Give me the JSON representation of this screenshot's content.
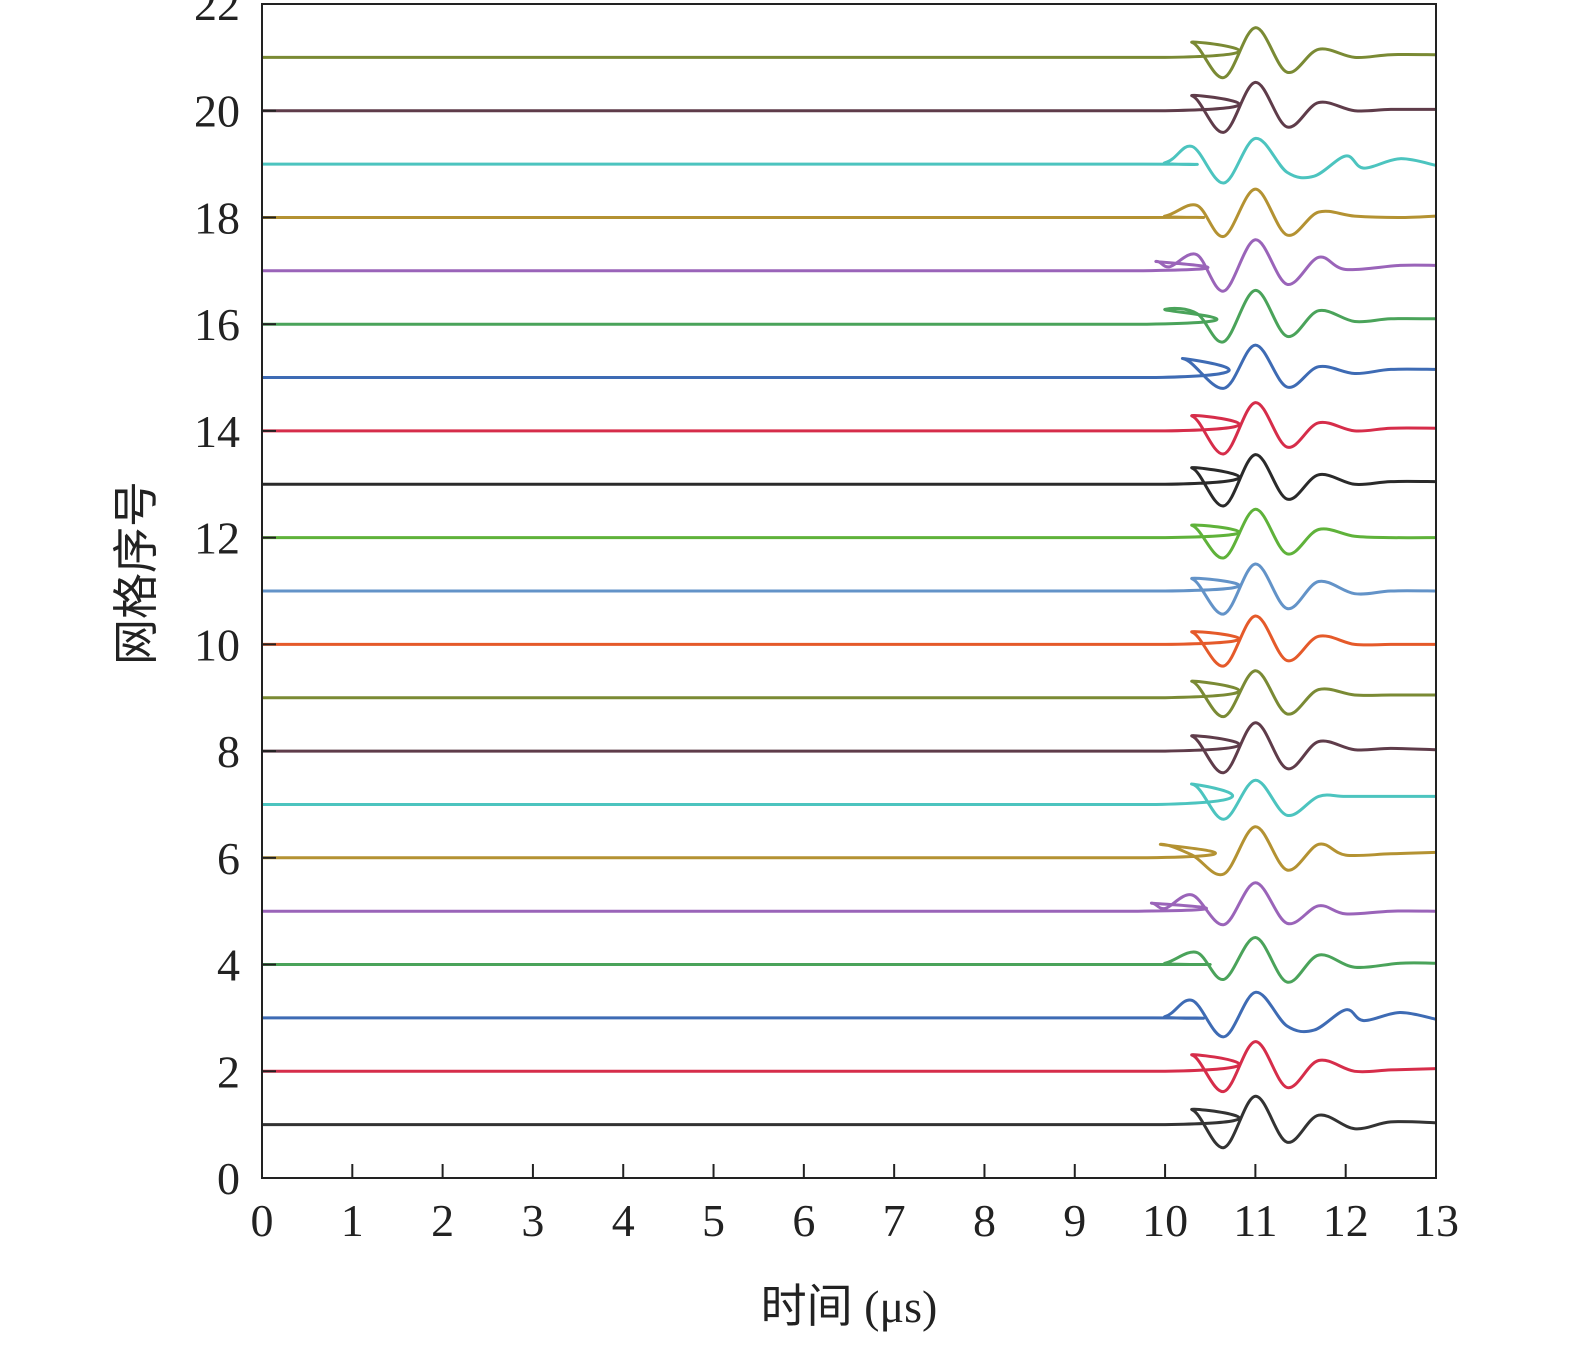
{
  "chart_data": {
    "type": "line",
    "title": "",
    "xlabel": "时间 (μs)",
    "ylabel": "网格序号",
    "xlim": [
      0,
      13
    ],
    "ylim": [
      0,
      22
    ],
    "x_ticks": [
      0,
      1,
      2,
      3,
      4,
      5,
      6,
      7,
      8,
      9,
      10,
      11,
      12,
      13
    ],
    "y_ticks": [
      0,
      2,
      4,
      6,
      8,
      10,
      12,
      14,
      16,
      18,
      20,
      22
    ],
    "grid": false,
    "legend": "none",
    "series": [
      {
        "baseline": 1,
        "color": "#333333",
        "onset": 10.0,
        "points": [
          [
            10.0,
            0
          ],
          [
            10.3,
            0.55
          ],
          [
            10.65,
            -0.85
          ],
          [
            11.0,
            1.05
          ],
          [
            11.35,
            -0.65
          ],
          [
            11.7,
            0.35
          ],
          [
            12.1,
            -0.15
          ],
          [
            12.5,
            0.1
          ],
          [
            13.0,
            0.07
          ]
        ]
      },
      {
        "baseline": 2,
        "color": "#d62d4a",
        "onset": 10.0,
        "points": [
          [
            10.0,
            0
          ],
          [
            10.3,
            0.6
          ],
          [
            10.65,
            -0.75
          ],
          [
            11.0,
            1.1
          ],
          [
            11.35,
            -0.6
          ],
          [
            11.7,
            0.4
          ],
          [
            12.1,
            0.0
          ],
          [
            12.5,
            0.05
          ],
          [
            13.0,
            0.1
          ]
        ]
      },
      {
        "baseline": 3,
        "color": "#3e6bb4",
        "onset": 9.6,
        "points": [
          [
            9.6,
            0
          ],
          [
            10.0,
            0.05
          ],
          [
            10.3,
            0.65
          ],
          [
            10.65,
            -0.7
          ],
          [
            11.0,
            0.95
          ],
          [
            11.35,
            -0.3
          ],
          [
            11.65,
            -0.45
          ],
          [
            12.0,
            0.3
          ],
          [
            12.2,
            -0.1
          ],
          [
            12.6,
            0.2
          ],
          [
            13.0,
            -0.05
          ]
        ]
      },
      {
        "baseline": 4,
        "color": "#4aa35a",
        "onset": 9.7,
        "points": [
          [
            9.7,
            0
          ],
          [
            10.0,
            0.05
          ],
          [
            10.35,
            0.45
          ],
          [
            10.65,
            -0.55
          ],
          [
            11.0,
            1.0
          ],
          [
            11.35,
            -0.65
          ],
          [
            11.7,
            0.35
          ],
          [
            12.1,
            -0.1
          ],
          [
            12.6,
            0.05
          ],
          [
            13.0,
            0.05
          ]
        ]
      },
      {
        "baseline": 5,
        "color": "#9a64b9",
        "onset": 9.7,
        "points": [
          [
            9.7,
            0
          ],
          [
            9.85,
            0.3
          ],
          [
            10.0,
            0.1
          ],
          [
            10.3,
            0.6
          ],
          [
            10.65,
            -0.5
          ],
          [
            11.0,
            1.05
          ],
          [
            11.35,
            -0.45
          ],
          [
            11.7,
            0.2
          ],
          [
            12.0,
            -0.1
          ],
          [
            12.5,
            0.0
          ],
          [
            13.0,
            0.0
          ]
        ]
      },
      {
        "baseline": 6,
        "color": "#b49232",
        "onset": 9.8,
        "points": [
          [
            9.8,
            0
          ],
          [
            9.95,
            0.5
          ],
          [
            10.3,
            0.1
          ],
          [
            10.65,
            -0.6
          ],
          [
            11.0,
            1.15
          ],
          [
            11.35,
            -0.45
          ],
          [
            11.7,
            0.5
          ],
          [
            12.0,
            0.1
          ],
          [
            12.5,
            0.15
          ],
          [
            13.0,
            0.2
          ]
        ]
      },
      {
        "baseline": 7,
        "color": "#4cc4bf",
        "onset": 9.9,
        "points": [
          [
            9.9,
            0
          ],
          [
            10.3,
            0.75
          ],
          [
            10.65,
            -0.55
          ],
          [
            11.0,
            0.9
          ],
          [
            11.35,
            -0.4
          ],
          [
            11.7,
            0.3
          ],
          [
            12.0,
            0.3
          ],
          [
            12.5,
            0.3
          ],
          [
            13.0,
            0.3
          ]
        ]
      },
      {
        "baseline": 8,
        "color": "#5f3c4a",
        "onset": 10.0,
        "points": [
          [
            10.0,
            0
          ],
          [
            10.3,
            0.55
          ],
          [
            10.65,
            -0.8
          ],
          [
            11.0,
            1.05
          ],
          [
            11.35,
            -0.65
          ],
          [
            11.7,
            0.35
          ],
          [
            12.1,
            0.05
          ],
          [
            12.5,
            0.1
          ],
          [
            13.0,
            0.05
          ]
        ]
      },
      {
        "baseline": 9,
        "color": "#7a8a34",
        "onset": 10.0,
        "points": [
          [
            10.0,
            0
          ],
          [
            10.3,
            0.6
          ],
          [
            10.65,
            -0.7
          ],
          [
            11.0,
            1.0
          ],
          [
            11.35,
            -0.6
          ],
          [
            11.7,
            0.3
          ],
          [
            12.1,
            0.1
          ],
          [
            12.5,
            0.1
          ],
          [
            13.0,
            0.1
          ]
        ]
      },
      {
        "baseline": 10,
        "color": "#e55a2a",
        "onset": 10.0,
        "points": [
          [
            10.0,
            0
          ],
          [
            10.3,
            0.45
          ],
          [
            10.65,
            -0.8
          ],
          [
            11.0,
            1.05
          ],
          [
            11.35,
            -0.6
          ],
          [
            11.7,
            0.3
          ],
          [
            12.1,
            0.0
          ],
          [
            12.5,
            0.0
          ],
          [
            13.0,
            0.0
          ]
        ]
      },
      {
        "baseline": 11,
        "color": "#6393c8",
        "onset": 10.0,
        "points": [
          [
            10.0,
            0
          ],
          [
            10.3,
            0.45
          ],
          [
            10.65,
            -0.85
          ],
          [
            11.0,
            1.0
          ],
          [
            11.35,
            -0.65
          ],
          [
            11.7,
            0.35
          ],
          [
            12.1,
            -0.1
          ],
          [
            12.5,
            0.0
          ],
          [
            13.0,
            0.0
          ]
        ]
      },
      {
        "baseline": 12,
        "color": "#5fb23a",
        "onset": 10.0,
        "points": [
          [
            10.0,
            0
          ],
          [
            10.3,
            0.45
          ],
          [
            10.65,
            -0.75
          ],
          [
            11.0,
            1.05
          ],
          [
            11.35,
            -0.6
          ],
          [
            11.7,
            0.3
          ],
          [
            12.1,
            0.05
          ],
          [
            12.5,
            0.0
          ],
          [
            13.0,
            0.0
          ]
        ]
      },
      {
        "baseline": 13,
        "color": "#2a2a2a",
        "onset": 10.0,
        "points": [
          [
            10.0,
            0
          ],
          [
            10.3,
            0.6
          ],
          [
            10.65,
            -0.8
          ],
          [
            11.0,
            1.1
          ],
          [
            11.35,
            -0.55
          ],
          [
            11.7,
            0.35
          ],
          [
            12.1,
            0.0
          ],
          [
            12.5,
            0.1
          ],
          [
            13.0,
            0.1
          ]
        ]
      },
      {
        "baseline": 14,
        "color": "#d62d4a",
        "onset": 10.0,
        "points": [
          [
            10.0,
            0
          ],
          [
            10.3,
            0.55
          ],
          [
            10.65,
            -0.85
          ],
          [
            11.0,
            1.05
          ],
          [
            11.35,
            -0.6
          ],
          [
            11.7,
            0.3
          ],
          [
            12.1,
            0.0
          ],
          [
            12.5,
            0.1
          ],
          [
            13.0,
            0.1
          ]
        ]
      },
      {
        "baseline": 15,
        "color": "#3e6bb4",
        "onset": 9.9,
        "points": [
          [
            9.9,
            0
          ],
          [
            10.2,
            0.7
          ],
          [
            10.65,
            -0.4
          ],
          [
            11.0,
            1.2
          ],
          [
            11.35,
            -0.35
          ],
          [
            11.7,
            0.4
          ],
          [
            12.1,
            0.15
          ],
          [
            12.5,
            0.3
          ],
          [
            13.0,
            0.3
          ]
        ]
      },
      {
        "baseline": 16,
        "color": "#4aa35a",
        "onset": 9.8,
        "points": [
          [
            9.8,
            0
          ],
          [
            10.0,
            0.55
          ],
          [
            10.35,
            0.4
          ],
          [
            10.65,
            -0.65
          ],
          [
            11.0,
            1.25
          ],
          [
            11.35,
            -0.45
          ],
          [
            11.7,
            0.5
          ],
          [
            12.1,
            0.1
          ],
          [
            12.5,
            0.2
          ],
          [
            13.0,
            0.2
          ]
        ]
      },
      {
        "baseline": 17,
        "color": "#9a64b9",
        "onset": 9.7,
        "points": [
          [
            9.7,
            0
          ],
          [
            9.9,
            0.35
          ],
          [
            10.05,
            0.15
          ],
          [
            10.35,
            0.6
          ],
          [
            10.65,
            -0.75
          ],
          [
            11.0,
            1.15
          ],
          [
            11.35,
            -0.5
          ],
          [
            11.7,
            0.5
          ],
          [
            12.0,
            0.05
          ],
          [
            12.6,
            0.2
          ],
          [
            13.0,
            0.2
          ]
        ]
      },
      {
        "baseline": 18,
        "color": "#b49232",
        "onset": 9.6,
        "points": [
          [
            9.6,
            0
          ],
          [
            10.0,
            0.05
          ],
          [
            10.35,
            0.45
          ],
          [
            10.65,
            -0.7
          ],
          [
            11.0,
            1.05
          ],
          [
            11.35,
            -0.65
          ],
          [
            11.7,
            0.2
          ],
          [
            12.1,
            0.05
          ],
          [
            12.6,
            0.0
          ],
          [
            13.0,
            0.05
          ]
        ]
      },
      {
        "baseline": 19,
        "color": "#4cc4bf",
        "onset": 9.5,
        "points": [
          [
            9.5,
            0
          ],
          [
            10.0,
            0.05
          ],
          [
            10.3,
            0.65
          ],
          [
            10.65,
            -0.7
          ],
          [
            11.0,
            0.95
          ],
          [
            11.35,
            -0.3
          ],
          [
            11.65,
            -0.45
          ],
          [
            12.0,
            0.3
          ],
          [
            12.2,
            -0.15
          ],
          [
            12.6,
            0.2
          ],
          [
            13.0,
            -0.05
          ]
        ]
      },
      {
        "baseline": 20,
        "color": "#5f3c4a",
        "onset": 10.0,
        "points": [
          [
            10.0,
            0
          ],
          [
            10.3,
            0.55
          ],
          [
            10.65,
            -0.8
          ],
          [
            11.0,
            1.05
          ],
          [
            11.35,
            -0.6
          ],
          [
            11.7,
            0.3
          ],
          [
            12.1,
            0.0
          ],
          [
            12.5,
            0.05
          ],
          [
            13.0,
            0.05
          ]
        ]
      },
      {
        "baseline": 21,
        "color": "#7a8a34",
        "onset": 10.0,
        "points": [
          [
            10.0,
            0
          ],
          [
            10.3,
            0.55
          ],
          [
            10.65,
            -0.75
          ],
          [
            11.0,
            1.1
          ],
          [
            11.35,
            -0.55
          ],
          [
            11.7,
            0.3
          ],
          [
            12.1,
            0.0
          ],
          [
            12.5,
            0.1
          ],
          [
            13.0,
            0.1
          ]
        ]
      }
    ]
  }
}
